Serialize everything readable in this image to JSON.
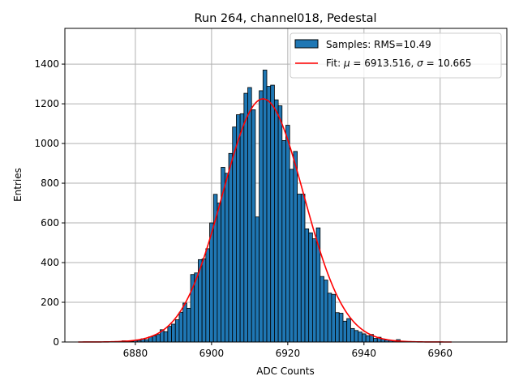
{
  "chart_data": {
    "type": "bar",
    "title": "Run 264, channel018, Pedestal",
    "xlabel": "ADC Counts",
    "ylabel": "Entries",
    "xlim": [
      6861.5,
      6977.5
    ],
    "ylim": [
      0,
      1580
    ],
    "xticks": [
      6880,
      6900,
      6920,
      6940,
      6960
    ],
    "yticks": [
      0,
      200,
      400,
      600,
      800,
      1000,
      1200,
      1400
    ],
    "grid": true,
    "legend_position": "top-right",
    "bin_width": 1,
    "colors": {
      "bar": "#1f77b4",
      "bar_edge": "#000000",
      "fit": "#ff0000",
      "grid": "#b0b0b0"
    },
    "series": [
      {
        "name": "Samples: RMS=10.49",
        "kind": "histogram",
        "bins": [
          {
            "x": 6877,
            "y": 6
          },
          {
            "x": 6878,
            "y": 4
          },
          {
            "x": 6879,
            "y": 3
          },
          {
            "x": 6880,
            "y": 8
          },
          {
            "x": 6881,
            "y": 8
          },
          {
            "x": 6882,
            "y": 16
          },
          {
            "x": 6883,
            "y": 12
          },
          {
            "x": 6884,
            "y": 26
          },
          {
            "x": 6885,
            "y": 31
          },
          {
            "x": 6886,
            "y": 38
          },
          {
            "x": 6887,
            "y": 62
          },
          {
            "x": 6888,
            "y": 52
          },
          {
            "x": 6889,
            "y": 79
          },
          {
            "x": 6890,
            "y": 90
          },
          {
            "x": 6891,
            "y": 112
          },
          {
            "x": 6892,
            "y": 150
          },
          {
            "x": 6893,
            "y": 196
          },
          {
            "x": 6894,
            "y": 170
          },
          {
            "x": 6895,
            "y": 340
          },
          {
            "x": 6896,
            "y": 348
          },
          {
            "x": 6897,
            "y": 415
          },
          {
            "x": 6898,
            "y": 419
          },
          {
            "x": 6899,
            "y": 470
          },
          {
            "x": 6900,
            "y": 600
          },
          {
            "x": 6901,
            "y": 744
          },
          {
            "x": 6902,
            "y": 700
          },
          {
            "x": 6903,
            "y": 880
          },
          {
            "x": 6904,
            "y": 850
          },
          {
            "x": 6905,
            "y": 950
          },
          {
            "x": 6906,
            "y": 1083
          },
          {
            "x": 6907,
            "y": 1145
          },
          {
            "x": 6908,
            "y": 1150
          },
          {
            "x": 6909,
            "y": 1253
          },
          {
            "x": 6910,
            "y": 1282
          },
          {
            "x": 6911,
            "y": 1170
          },
          {
            "x": 6912,
            "y": 630
          },
          {
            "x": 6913,
            "y": 1266
          },
          {
            "x": 6914,
            "y": 1370
          },
          {
            "x": 6915,
            "y": 1288
          },
          {
            "x": 6916,
            "y": 1294
          },
          {
            "x": 6917,
            "y": 1220
          },
          {
            "x": 6918,
            "y": 1190
          },
          {
            "x": 6919,
            "y": 1015
          },
          {
            "x": 6920,
            "y": 1092
          },
          {
            "x": 6921,
            "y": 870
          },
          {
            "x": 6922,
            "y": 960
          },
          {
            "x": 6923,
            "y": 745
          },
          {
            "x": 6924,
            "y": 745
          },
          {
            "x": 6925,
            "y": 570
          },
          {
            "x": 6926,
            "y": 550
          },
          {
            "x": 6927,
            "y": 520
          },
          {
            "x": 6928,
            "y": 575
          },
          {
            "x": 6929,
            "y": 330
          },
          {
            "x": 6930,
            "y": 312
          },
          {
            "x": 6931,
            "y": 246
          },
          {
            "x": 6932,
            "y": 240
          },
          {
            "x": 6933,
            "y": 148
          },
          {
            "x": 6934,
            "y": 145
          },
          {
            "x": 6935,
            "y": 105
          },
          {
            "x": 6936,
            "y": 118
          },
          {
            "x": 6937,
            "y": 68
          },
          {
            "x": 6938,
            "y": 58
          },
          {
            "x": 6939,
            "y": 50
          },
          {
            "x": 6940,
            "y": 41
          },
          {
            "x": 6941,
            "y": 32
          },
          {
            "x": 6942,
            "y": 38
          },
          {
            "x": 6943,
            "y": 18
          },
          {
            "x": 6944,
            "y": 24
          },
          {
            "x": 6945,
            "y": 15
          },
          {
            "x": 6946,
            "y": 10
          },
          {
            "x": 6947,
            "y": 8
          },
          {
            "x": 6948,
            "y": 5
          },
          {
            "x": 6949,
            "y": 12
          },
          {
            "x": 6950,
            "y": 3
          }
        ]
      },
      {
        "name": "Fit: μ = 6913.516, σ = 10.665",
        "kind": "gaussian",
        "mu": 6913.516,
        "sigma": 10.665,
        "amplitude": 1225,
        "x_range": [
          6865,
          6963
        ]
      }
    ],
    "legend": {
      "samples_prefix": "Samples: RMS=10.49",
      "fit_prefix": "Fit: ",
      "mu_symbol": "μ",
      "mu_text": " = 6913.516, ",
      "sigma_symbol": "σ",
      "sigma_text": " = 10.665"
    }
  }
}
